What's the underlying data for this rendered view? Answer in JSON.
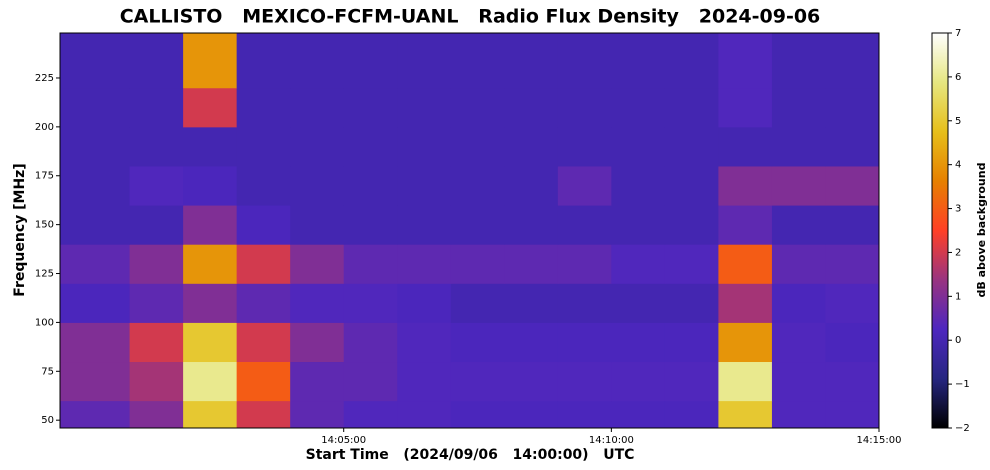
{
  "chart_data": {
    "type": "heatmap",
    "title": "CALLISTO   MEXICO-FCFM-UANL   Radio Flux Density   2024-09-06",
    "x_label": "Start Time   (2024/09/06   14:00:00)   UTC",
    "y_label": "Frequency [MHz]",
    "colorbar_label": "dB above background",
    "xbins": [
      -0.3,
      1,
      2,
      3,
      4,
      5,
      6,
      7,
      8,
      9,
      10,
      11,
      12,
      13,
      14,
      15
    ],
    "ybins": [
      46,
      60,
      80,
      100,
      120,
      140,
      160,
      180,
      200,
      220,
      248
    ],
    "z": [
      [
        0.5,
        1,
        5,
        2,
        0.5,
        0.3,
        0.3,
        0.2,
        0.2,
        0.2,
        0.2,
        0.2,
        5,
        0.3,
        0.3
      ],
      [
        1,
        1.5,
        6,
        3,
        0.5,
        0.5,
        0.3,
        0.3,
        0.3,
        0.3,
        0.3,
        0.3,
        6,
        0.3,
        0.3
      ],
      [
        1,
        2,
        5,
        2,
        1,
        0.5,
        0.3,
        0.2,
        0.2,
        0.2,
        0.2,
        0.2,
        4,
        0.3,
        0.2
      ],
      [
        0.2,
        0.5,
        1,
        0.5,
        0.3,
        0.3,
        0.2,
        0,
        0,
        0,
        0,
        0,
        1.5,
        0.2,
        0.3
      ],
      [
        0.5,
        1,
        4,
        2,
        1,
        0.5,
        0.5,
        0.5,
        0.5,
        0.5,
        0.3,
        0.3,
        3,
        0.5,
        0.5
      ],
      [
        0,
        0,
        1,
        0.2,
        0,
        0,
        0,
        0,
        0,
        0,
        0,
        0,
        0.5,
        0,
        0
      ],
      [
        0,
        0.3,
        0.2,
        0,
        0,
        0,
        0,
        0,
        0,
        0.5,
        0,
        0,
        1,
        1,
        1
      ],
      [
        0,
        0,
        0,
        0,
        0,
        0,
        0,
        0,
        0,
        0,
        0,
        0,
        0,
        0,
        0
      ],
      [
        0,
        0,
        2,
        0,
        0,
        0,
        0,
        0,
        0,
        0,
        0,
        0,
        0.3,
        0,
        0
      ],
      [
        0,
        0,
        4,
        0,
        0,
        0,
        0,
        0,
        0,
        0,
        0,
        0,
        0.3,
        0,
        0
      ]
    ],
    "xlim": [
      -0.3,
      15
    ],
    "ylim": [
      46,
      248
    ],
    "xticks": [
      {
        "value": 5,
        "label": "14:05:00"
      },
      {
        "value": 10,
        "label": "14:10:00"
      },
      {
        "value": 15,
        "label": "14:15:00"
      }
    ],
    "yticks": [
      50,
      75,
      100,
      125,
      150,
      175,
      200,
      225
    ],
    "clim": [
      -2,
      7
    ],
    "cticks": [
      {
        "value": -2,
        "label": "−2"
      },
      {
        "value": -1,
        "label": "−1"
      },
      0,
      1,
      2,
      3,
      4,
      5,
      6,
      7
    ],
    "colormap": [
      "#000000",
      "#262680",
      "#4d26bf",
      "#993380",
      "#ff4026",
      "#e68000",
      "#e6bf1a",
      "#e6e680",
      "#ffffff"
    ]
  }
}
